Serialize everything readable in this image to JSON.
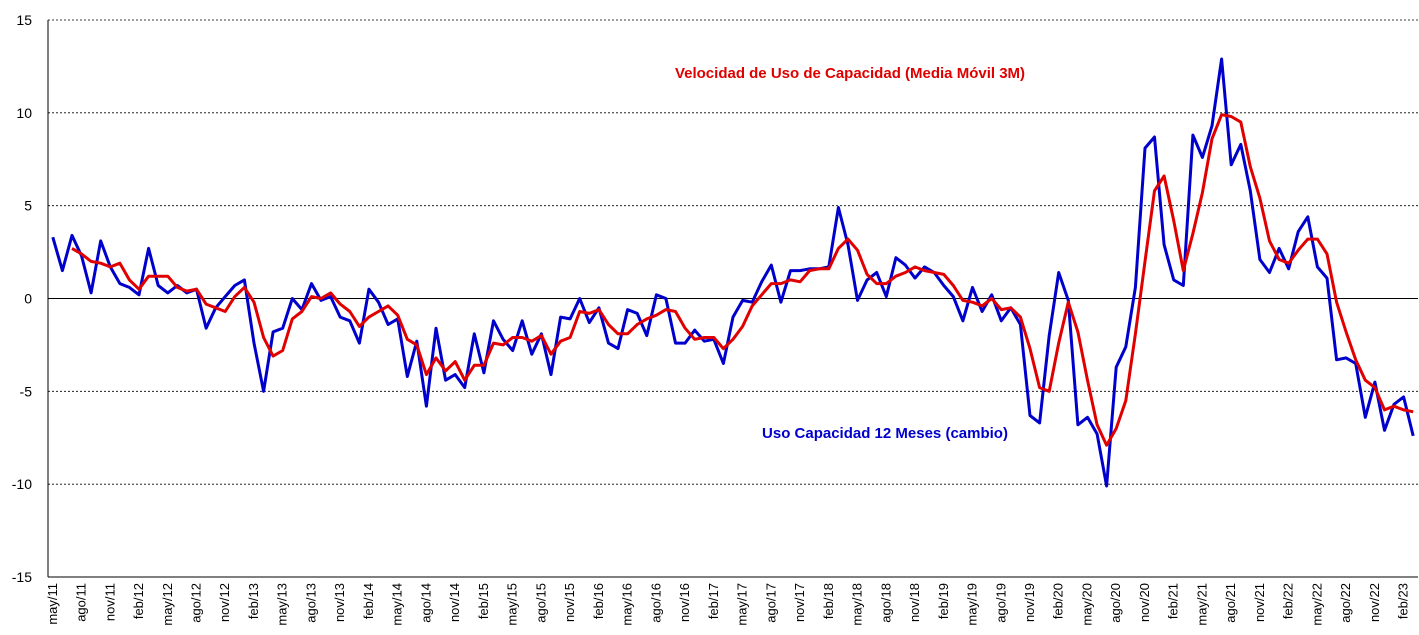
{
  "chart_data": {
    "type": "line",
    "categories": [
      "may/11",
      null,
      null,
      "ago/11",
      null,
      null,
      "nov/11",
      null,
      null,
      "feb/12",
      null,
      null,
      "may/12",
      null,
      null,
      "ago/12",
      null,
      null,
      "nov/12",
      null,
      null,
      "feb/13",
      null,
      null,
      "may/13",
      null,
      null,
      "ago/13",
      null,
      null,
      "nov/13",
      null,
      null,
      "feb/14",
      null,
      null,
      "may/14",
      null,
      null,
      "ago/14",
      null,
      null,
      "nov/14",
      null,
      null,
      "feb/15",
      null,
      null,
      "may/15",
      null,
      null,
      "ago/15",
      null,
      null,
      "nov/15",
      null,
      null,
      "feb/16",
      null,
      null,
      "may/16",
      null,
      null,
      "ago/16",
      null,
      null,
      "nov/16",
      null,
      null,
      "feb/17",
      null,
      null,
      "may/17",
      null,
      null,
      "ago/17",
      null,
      null,
      "nov/17",
      null,
      null,
      "feb/18",
      null,
      null,
      "may/18",
      null,
      null,
      "ago/18",
      null,
      null,
      "nov/18",
      null,
      null,
      "feb/19",
      null,
      null,
      "may/19",
      null,
      null,
      "ago/19",
      null,
      null,
      "nov/19",
      null,
      null,
      "feb/20",
      null,
      null,
      "may/20",
      null,
      null,
      "ago/20",
      null,
      null,
      "nov/20",
      null,
      null,
      "feb/21",
      null,
      null,
      "may/21",
      null,
      null,
      "ago/21",
      null,
      null,
      "nov/21",
      null,
      null,
      "feb/22",
      null,
      null,
      "may/22",
      null,
      null,
      "ago/22",
      null,
      null,
      "nov/22",
      null,
      null,
      "feb/23",
      null
    ],
    "series": [
      {
        "name": "Uso Capacidad 12 Meses (cambio)",
        "color": "#0000cc",
        "values": [
          3.3,
          1.5,
          3.4,
          2.3,
          0.3,
          3.1,
          1.7,
          0.8,
          0.6,
          0.2,
          2.7,
          0.7,
          0.3,
          0.7,
          0.3,
          0.5,
          -1.6,
          -0.5,
          0.1,
          0.7,
          1.0,
          -2.4,
          -5.0,
          -1.8,
          -1.6,
          0.0,
          -0.6,
          0.8,
          -0.1,
          0.1,
          -1.0,
          -1.2,
          -2.4,
          0.5,
          -0.2,
          -1.4,
          -1.1,
          -4.2,
          -2.3,
          -5.8,
          -1.6,
          -4.4,
          -4.1,
          -4.8,
          -1.9,
          -4.0,
          -1.2,
          -2.2,
          -2.8,
          -1.2,
          -3.0,
          -1.9,
          -4.1,
          -1.0,
          -1.1,
          0.0,
          -1.3,
          -0.5,
          -2.4,
          -2.7,
          -0.6,
          -0.8,
          -2.0,
          0.2,
          0.0,
          -2.4,
          -2.4,
          -1.7,
          -2.3,
          -2.2,
          -3.5,
          -1.0,
          -0.1,
          -0.2,
          0.9,
          1.8,
          -0.2,
          1.5,
          1.5,
          1.6,
          1.6,
          1.7,
          4.9,
          2.9,
          -0.1,
          1.0,
          1.4,
          0.1,
          2.2,
          1.8,
          1.1,
          1.7,
          1.4,
          0.7,
          0.1,
          -1.2,
          0.6,
          -0.7,
          0.2,
          -1.2,
          -0.5,
          -1.4,
          -6.3,
          -6.7,
          -2.0,
          1.4,
          -0.1,
          -6.8,
          -6.4,
          -7.3,
          -10.1,
          -3.7,
          -2.6,
          0.6,
          8.1,
          8.7,
          2.9,
          1.0,
          0.7,
          8.8,
          7.6,
          9.3,
          12.9,
          7.2,
          8.3,
          5.8,
          2.1,
          1.4,
          2.7,
          1.6,
          3.6,
          4.4,
          1.7,
          1.1,
          -3.3,
          -3.2,
          -3.5,
          -6.4,
          -4.5,
          -7.1,
          -5.7,
          -5.3,
          -7.4
        ]
      },
      {
        "name": "Velocidad de Uso de Capacidad (Media Móvil 3M)",
        "color": "#e00000",
        "values": [
          null,
          null,
          2.7,
          2.4,
          2.0,
          1.9,
          1.7,
          1.9,
          1.0,
          0.5,
          1.2,
          1.2,
          1.2,
          0.6,
          0.4,
          0.5,
          -0.3,
          -0.5,
          -0.7,
          0.1,
          0.6,
          -0.2,
          -2.1,
          -3.1,
          -2.8,
          -1.1,
          -0.7,
          0.1,
          0.0,
          0.3,
          -0.3,
          -0.7,
          -1.5,
          -1.0,
          -0.7,
          -0.4,
          -0.9,
          -2.2,
          -2.5,
          -4.1,
          -3.2,
          -3.9,
          -3.4,
          -4.4,
          -3.6,
          -3.6,
          -2.4,
          -2.5,
          -2.1,
          -2.1,
          -2.3,
          -2.0,
          -3.0,
          -2.3,
          -2.1,
          -0.7,
          -0.8,
          -0.6,
          -1.4,
          -1.9,
          -1.9,
          -1.4,
          -1.1,
          -0.9,
          -0.6,
          -0.7,
          -1.6,
          -2.2,
          -2.1,
          -2.1,
          -2.7,
          -2.2,
          -1.5,
          -0.4,
          0.2,
          0.8,
          0.8,
          1.0,
          0.9,
          1.5,
          1.6,
          1.6,
          2.7,
          3.2,
          2.6,
          1.3,
          0.8,
          0.8,
          1.2,
          1.4,
          1.7,
          1.5,
          1.4,
          1.3,
          0.7,
          -0.1,
          -0.2,
          -0.4,
          0.0,
          -0.6,
          -0.5,
          -1.0,
          -2.7,
          -4.8,
          -5.0,
          -2.4,
          -0.2,
          -1.8,
          -4.4,
          -6.8,
          -7.9,
          -7.0,
          -5.5,
          -1.9,
          2.0,
          5.8,
          6.6,
          4.2,
          1.5,
          3.5,
          5.7,
          8.6,
          9.9,
          9.8,
          9.5,
          7.1,
          5.4,
          3.1,
          2.1,
          1.9,
          2.6,
          3.2,
          3.2,
          2.4,
          -0.2,
          -1.8,
          -3.3,
          -4.4,
          -4.8,
          -6.0,
          -5.8,
          -6.0,
          -6.1
        ]
      }
    ],
    "ylim": [
      -15,
      15
    ],
    "yticks": [
      -15,
      -10,
      -5,
      0,
      5,
      10,
      15
    ],
    "grid": true
  }
}
